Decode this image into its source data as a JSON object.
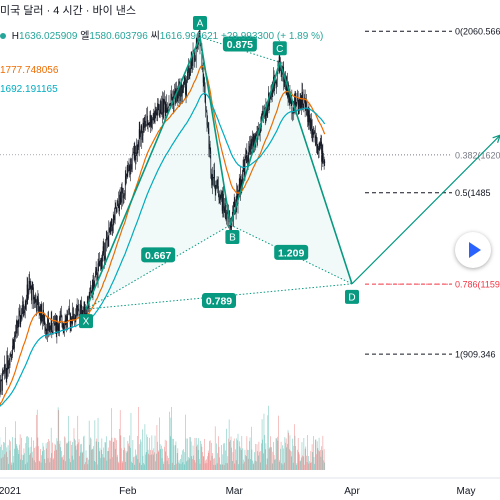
{
  "header": {
    "title": "미국 달러 · 4 시간 · 바이 낸스"
  },
  "ohlc": {
    "high_label": "H",
    "high": "1636.025909",
    "low_label": "엘",
    "low": "1580.603796",
    "close_label": "씨",
    "close": "1616.996621",
    "change": "+29.993300 (+ 1.89 %)"
  },
  "moving_averages": [
    {
      "value": "1777.748056",
      "color": "#ef6c00"
    },
    {
      "value": "1692.191165",
      "color": "#00acc1"
    }
  ],
  "chart_data": {
    "type": "candlestick",
    "pattern": {
      "type": "harmonic XABCD",
      "points": [
        {
          "label": "X",
          "date": "2021-01-21",
          "price": 1070
        },
        {
          "label": "A",
          "date": "2021-02-20",
          "price": 2040
        },
        {
          "label": "B",
          "date": "2021-02-28",
          "price": 1370
        },
        {
          "label": "C",
          "date": "2021-03-13",
          "price": 1950
        },
        {
          "label": "D",
          "date": "2021-04-01",
          "price": 1160
        }
      ],
      "ratios": [
        {
          "label": "0.875",
          "between": "XB/AC"
        },
        {
          "label": "0.667",
          "between": "XB"
        },
        {
          "label": "0.789",
          "between": "XD"
        },
        {
          "label": "1.209",
          "between": "BD"
        }
      ],
      "projection": {
        "from_date": "2021-04-01",
        "from_price": 1160,
        "to_date": "2021-05-10",
        "to_price": 1690
      }
    },
    "fib_levels": [
      {
        "label": "0(2060.566",
        "price": 2060.566,
        "style": "dashed",
        "color": "#131722"
      },
      {
        "label": "0.382(1620",
        "price": 1620,
        "style": "dotted",
        "color": "#787b86"
      },
      {
        "label": "0.5(1485",
        "price": 1485,
        "style": "dashed",
        "color": "#131722"
      },
      {
        "label": "0.786(1159",
        "price": 1159,
        "style": "dashed",
        "color": "#f23645"
      },
      {
        "label": "1(909.346",
        "price": 909.346,
        "style": "dashed",
        "color": "#131722"
      }
    ],
    "x_ticks": [
      "2021",
      "Feb",
      "Mar",
      "Apr",
      "May"
    ],
    "colors": {
      "pattern": "#089981",
      "ratio_badge": "#089981",
      "ma_fast": "#ef6c00",
      "ma_slow": "#00acc1",
      "volume": "#ef9a9a"
    }
  },
  "controls": {
    "play_label": "scroll-to-realtime"
  }
}
